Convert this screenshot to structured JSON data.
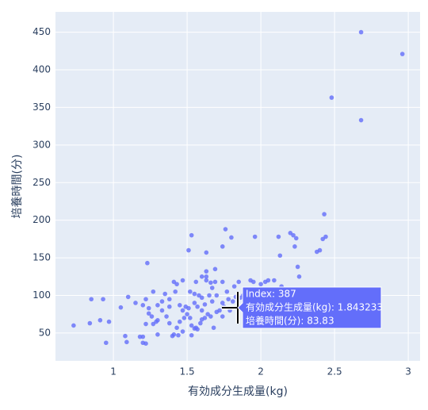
{
  "chart_data": {
    "type": "scatter",
    "x_label": "有効成分生成量(kg)",
    "y_label": "培養時間(分)",
    "x": [
      2.68,
      2.96,
      2.48,
      2.68,
      2.43,
      2.44,
      2.42,
      2.2,
      2.22,
      2.24,
      2.23,
      2.12,
      1.96,
      1.76,
      1.8,
      1.53,
      1.74,
      1.51,
      1.63,
      1.23,
      2.13,
      2.25,
      2.38,
      2.4,
      2.26,
      2.05,
      1.93,
      1.95,
      2.0,
      2.03,
      2.09,
      2.14,
      2.19,
      1.85,
      1.82,
      1.74,
      1.69,
      1.66,
      1.63,
      1.6,
      1.56,
      1.47,
      1.41,
      1.42,
      1.43,
      1.63,
      1.69,
      1.63,
      1.67,
      1.52,
      1.55,
      1.58,
      1.6,
      1.7,
      1.77,
      1.9,
      1.98,
      1.86,
      1.78,
      1.74,
      1.67,
      1.62,
      1.55,
      1.49,
      1.45,
      1.38,
      1.33,
      1.3,
      1.24,
      1.2,
      1.15,
      1.1,
      1.05,
      0.93,
      0.85,
      0.91,
      0.84,
      0.73,
      0.95,
      0.97,
      1.08,
      1.09,
      1.18,
      1.2,
      1.2,
      1.22,
      1.3,
      1.27,
      1.26,
      1.24,
      1.3,
      1.33,
      1.36,
      1.38,
      1.41,
      1.4,
      1.44,
      1.43,
      1.45,
      1.48,
      1.5,
      1.52,
      1.53,
      1.55,
      1.56,
      1.57,
      1.59,
      1.6,
      1.62,
      1.64,
      1.66,
      1.7,
      1.72,
      1.75,
      1.79,
      1.843233,
      1.81,
      1.83,
      1.88,
      1.91,
      1.95,
      2.0,
      1.47,
      1.51,
      1.57,
      1.35,
      1.27,
      1.22,
      1.53,
      1.47,
      1.29,
      1.22,
      1.68,
      1.38,
      1.6,
      1.74,
      1.65
    ],
    "series": [
      {
        "color": "#636efa",
        "values": [
          450,
          421,
          363,
          333,
          208,
          178,
          175,
          183,
          180,
          176,
          165,
          178,
          178,
          188,
          177,
          180,
          165,
          160,
          157,
          143,
          153,
          138,
          158,
          160,
          125,
          120,
          120,
          118,
          115,
          118,
          120,
          112,
          105,
          118,
          112,
          118,
          118,
          117,
          120,
          125,
          118,
          120,
          118,
          105,
          115,
          132,
          135,
          125,
          110,
          105,
          102,
          100,
          97,
          100,
          105,
          108,
          100,
          97,
          95,
          90,
          92,
          88,
          90,
          85,
          87,
          85,
          92,
          87,
          83,
          87,
          90,
          98,
          84,
          95,
          95,
          67,
          63,
          60,
          37,
          65,
          46,
          38,
          45,
          45,
          37,
          36,
          48,
          62,
          72,
          76,
          67,
          80,
          72,
          63,
          48,
          46,
          47,
          57,
          65,
          70,
          75,
          70,
          60,
          56,
          57,
          55,
          63,
          68,
          70,
          75,
          72,
          78,
          80,
          85,
          80,
          83.83,
          92,
          98,
          100,
          95,
          90,
          95,
          80,
          83,
          85,
          102,
          105,
          95,
          47,
          52,
          65,
          62,
          57,
          95,
          80,
          72,
          100
        ]
      }
    ],
    "xlim": [
      0.607,
      3.08
    ],
    "ylim": [
      13,
      477
    ],
    "xticks": [
      1,
      1.5,
      2,
      2.5,
      3
    ],
    "yticks": [
      50,
      100,
      150,
      200,
      250,
      300,
      350,
      400,
      450
    ],
    "grid": true,
    "hover_label": [
      "Index: 387",
      "有効成分生成量(kg): 1.843233",
      "培養時間(分): 83.83"
    ]
  }
}
